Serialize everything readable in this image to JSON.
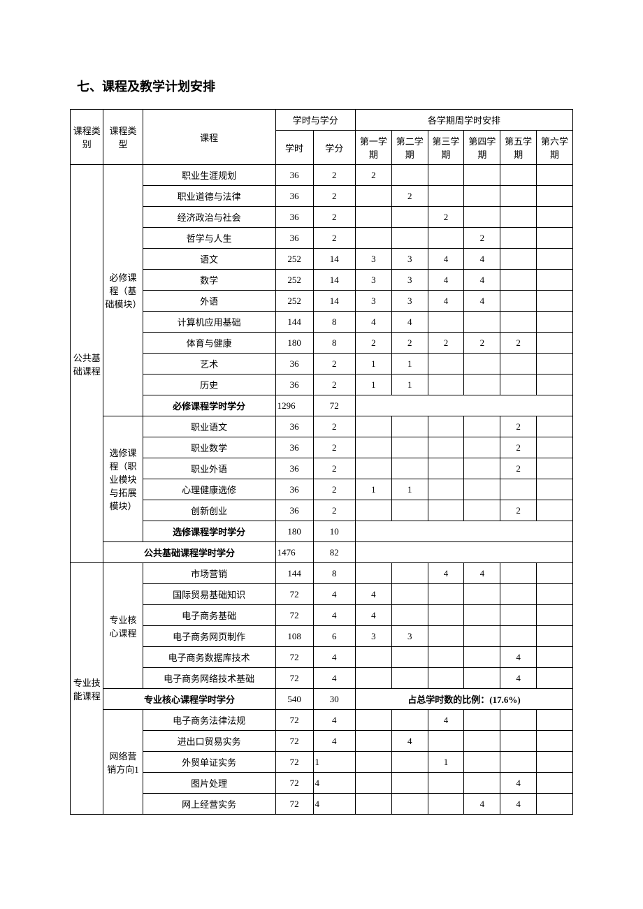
{
  "section_title": "七、课程及教学计划安排",
  "header": {
    "col_category": "课程类别",
    "col_type": "课程类型",
    "col_course": "课程",
    "col_hours_credits": "学时与学分",
    "col_semester_plan": "各学期周学时安排",
    "col_hours": "学时",
    "col_credits": "学分",
    "sem1": "第一学期",
    "sem2": "第二学期",
    "sem3": "第三学期",
    "sem4": "第四学期",
    "sem5": "第五学期",
    "sem6": "第六学期"
  },
  "cat1": {
    "label": "公共基础课程"
  },
  "cat2": {
    "label": "专业技能课程"
  },
  "type1": {
    "label": "必修课程（基础模块）"
  },
  "type2": {
    "label": "选修课程（职业模块与拓展模块）"
  },
  "type3": {
    "label": "专业核心课程"
  },
  "type4": {
    "label": "网络营销方向1"
  },
  "rows": {
    "r1": {
      "name": "职业生涯规划",
      "hours": "36",
      "credits": "2",
      "s1": "2",
      "s2": "",
      "s3": "",
      "s4": "",
      "s5": "",
      "s6": ""
    },
    "r2": {
      "name": "职业道德与法律",
      "hours": "36",
      "credits": "2",
      "s1": "",
      "s2": "2",
      "s3": "",
      "s4": "",
      "s5": "",
      "s6": ""
    },
    "r3": {
      "name": "经济政治与社会",
      "hours": "36",
      "credits": "2",
      "s1": "",
      "s2": "",
      "s3": "2",
      "s4": "",
      "s5": "",
      "s6": ""
    },
    "r4": {
      "name": "哲学与人生",
      "hours": "36",
      "credits": "2",
      "s1": "",
      "s2": "",
      "s3": "",
      "s4": "2",
      "s5": "",
      "s6": ""
    },
    "r5": {
      "name": "语文",
      "hours": "252",
      "credits": "14",
      "s1": "3",
      "s2": "3",
      "s3": "4",
      "s4": "4",
      "s5": "",
      "s6": ""
    },
    "r6": {
      "name": "数学",
      "hours": "252",
      "credits": "14",
      "s1": "3",
      "s2": "3",
      "s3": "4",
      "s4": "4",
      "s5": "",
      "s6": ""
    },
    "r7": {
      "name": "外语",
      "hours": "252",
      "credits": "14",
      "s1": "3",
      "s2": "3",
      "s3": "4",
      "s4": "4",
      "s5": "",
      "s6": ""
    },
    "r8": {
      "name": "计算机应用基础",
      "hours": "144",
      "credits": "8",
      "s1": "4",
      "s2": "4",
      "s3": "",
      "s4": "",
      "s5": "",
      "s6": ""
    },
    "r9": {
      "name": "体育与健康",
      "hours": "180",
      "credits": "8",
      "s1": "2",
      "s2": "2",
      "s3": "2",
      "s4": "2",
      "s5": "2",
      "s6": ""
    },
    "r10": {
      "name": "艺术",
      "hours": "36",
      "credits": "2",
      "s1": "1",
      "s2": "1",
      "s3": "",
      "s4": "",
      "s5": "",
      "s6": ""
    },
    "r11": {
      "name": "历史",
      "hours": "36",
      "credits": "2",
      "s1": "1",
      "s2": "1",
      "s3": "",
      "s4": "",
      "s5": "",
      "s6": ""
    },
    "sub1": {
      "name": "必修课程学时学分",
      "hours": "1296",
      "credits": "72"
    },
    "r12": {
      "name": "职业语文",
      "hours": "36",
      "credits": "2",
      "s1": "",
      "s2": "",
      "s3": "",
      "s4": "",
      "s5": "2",
      "s6": ""
    },
    "r13": {
      "name": "职业数学",
      "hours": "36",
      "credits": "2",
      "s1": "",
      "s2": "",
      "s3": "",
      "s4": "",
      "s5": "2",
      "s6": ""
    },
    "r14": {
      "name": "职业外语",
      "hours": "36",
      "credits": "2",
      "s1": "",
      "s2": "",
      "s3": "",
      "s4": "",
      "s5": "2",
      "s6": ""
    },
    "r15": {
      "name": "心理健康选修",
      "hours": "36",
      "credits": "2",
      "s1": "1",
      "s2": "1",
      "s3": "",
      "s4": "",
      "s5": "",
      "s6": ""
    },
    "r16": {
      "name": "创新创业",
      "hours": "36",
      "credits": "2",
      "s1": "",
      "s2": "",
      "s3": "",
      "s4": "",
      "s5": "2",
      "s6": ""
    },
    "sub2": {
      "name": "选修课程学时学分",
      "hours": "180",
      "credits": "10"
    },
    "sub3": {
      "name": "公共基础课程学时学分",
      "hours": "1476",
      "credits": "82"
    },
    "r17": {
      "name": "市场营销",
      "hours": "144",
      "credits": "8",
      "s1": "",
      "s2": "",
      "s3": "4",
      "s4": "4",
      "s5": "",
      "s6": ""
    },
    "r18": {
      "name": "国际贸易基础知识",
      "hours": "72",
      "credits": "4",
      "s1": "4",
      "s2": "",
      "s3": "",
      "s4": "",
      "s5": "",
      "s6": ""
    },
    "r19": {
      "name": "电子商务基础",
      "hours": "72",
      "credits": "4",
      "s1": "4",
      "s2": "",
      "s3": "",
      "s4": "",
      "s5": "",
      "s6": ""
    },
    "r20": {
      "name": "电子商务网页制作",
      "hours": "108",
      "credits": "6",
      "s1": "3",
      "s2": "3",
      "s3": "",
      "s4": "",
      "s5": "",
      "s6": ""
    },
    "r21": {
      "name": "电子商务数据库技术",
      "hours": "72",
      "credits": "4",
      "s1": "",
      "s2": "",
      "s3": "",
      "s4": "",
      "s5": "4",
      "s6": ""
    },
    "r22": {
      "name": "电子商务网络技术基础",
      "hours": "72",
      "credits": "4",
      "s1": "",
      "s2": "",
      "s3": "",
      "s4": "",
      "s5": "4",
      "s6": ""
    },
    "sub4": {
      "name": "专业核心课程学时学分",
      "hours": "540",
      "credits": "30",
      "note": "占总学时数的比例：(17.6%)"
    },
    "r23": {
      "name": "电子商务法律法规",
      "hours": "72",
      "credits": "4",
      "s1": "",
      "s2": "",
      "s3": "4",
      "s4": "",
      "s5": "",
      "s6": ""
    },
    "r24": {
      "name": "进出口贸易实务",
      "hours": "72",
      "credits": "4",
      "s1": "",
      "s2": "4",
      "s3": "",
      "s4": "",
      "s5": "",
      "s6": ""
    },
    "r25": {
      "name": "外贸单证实务",
      "hours": "72",
      "credits": "1",
      "s1": "",
      "s2": "",
      "s3": "1",
      "s4": "",
      "s5": "",
      "s6": ""
    },
    "r26": {
      "name": "图片处理",
      "hours": "72",
      "credits": "4",
      "s1": "",
      "s2": "",
      "s3": "",
      "s4": "",
      "s5": "4",
      "s6": ""
    },
    "r27": {
      "name": "网上经营实务",
      "hours": "72",
      "credits": "4",
      "s1": "",
      "s2": "",
      "s3": "",
      "s4": "4",
      "s5": "4",
      "s6": ""
    }
  },
  "style": {
    "font_size_body": 13,
    "font_size_title": 18,
    "border_color": "#000000",
    "background_color": "#ffffff",
    "text_color": "#000000"
  }
}
